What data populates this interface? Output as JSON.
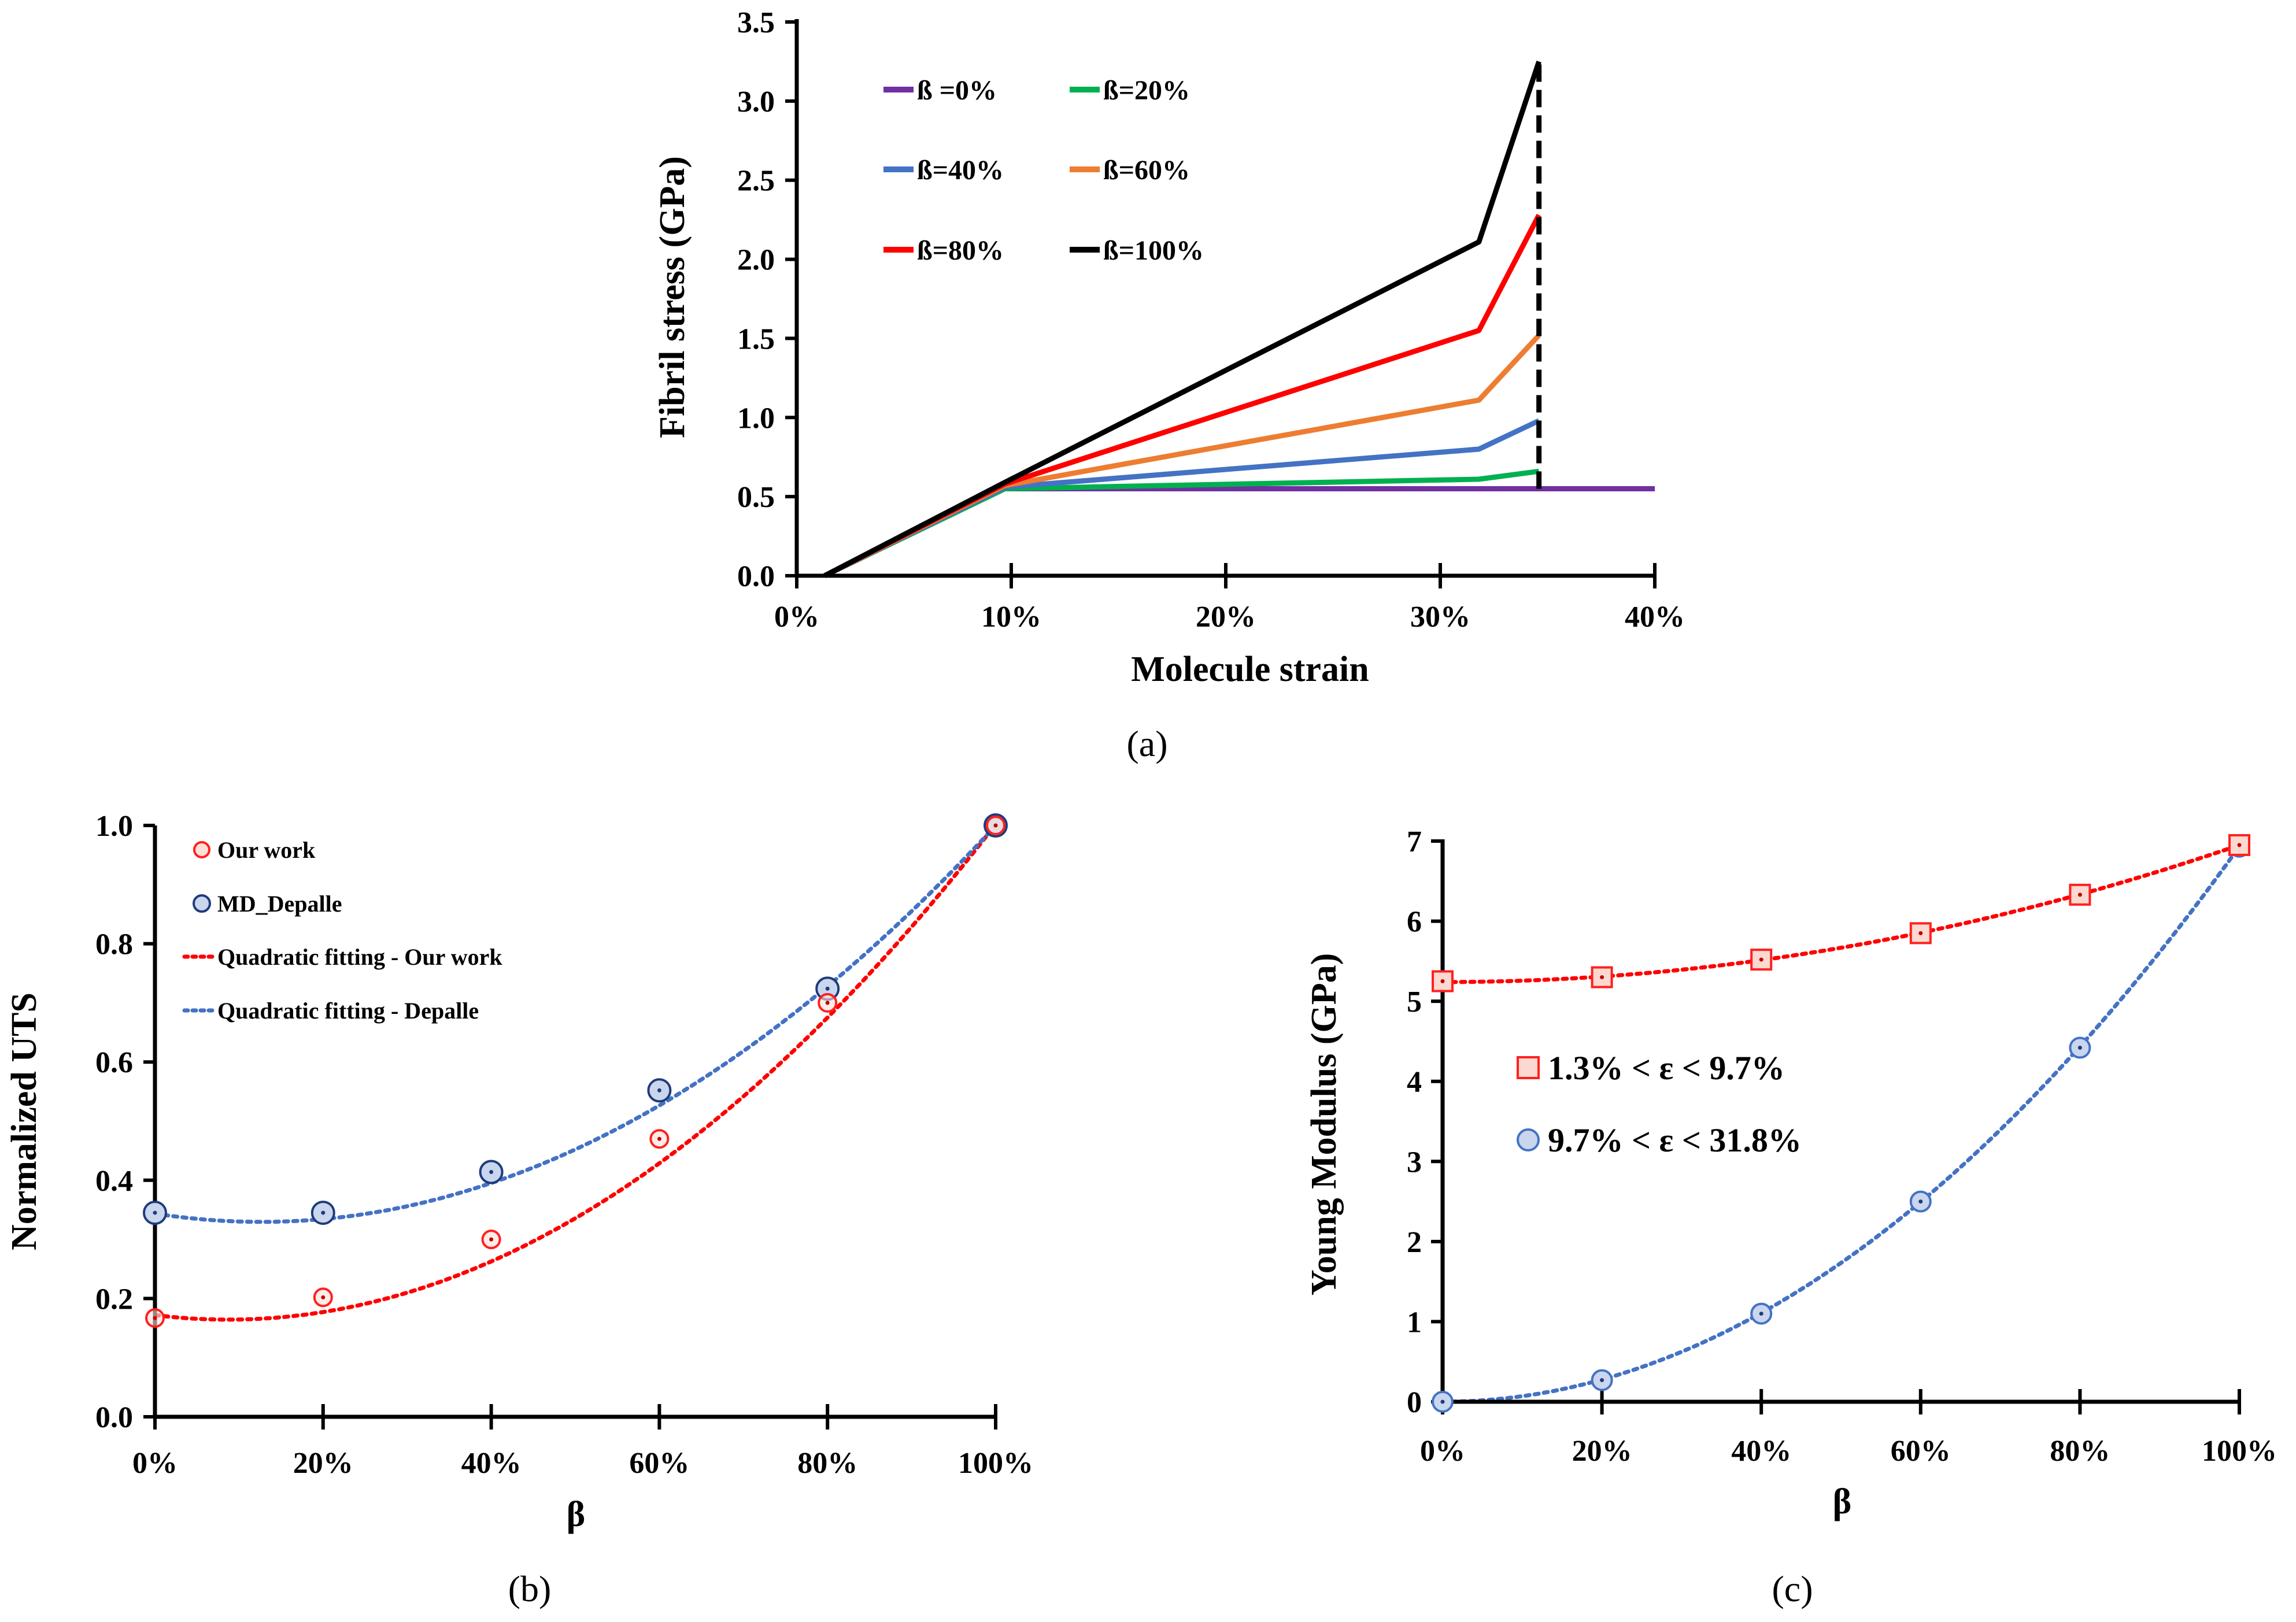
{
  "panels": {
    "a": {
      "caption": "(a)"
    },
    "b": {
      "caption": "(b)"
    },
    "c": {
      "caption": "(c)"
    }
  },
  "chart_data": [
    {
      "id": "a",
      "type": "line",
      "xlabel": "Molecule strain",
      "ylabel": "Fibril stress (GPa)",
      "xlim": [
        0,
        40
      ],
      "ylim": [
        0,
        3.5
      ],
      "x_ticks": [
        "0%",
        "10%",
        "20%",
        "30%",
        "40%"
      ],
      "y_ticks": [
        "0.0",
        "0.5",
        "1.0",
        "1.5",
        "2.0",
        "2.5",
        "3.0",
        "3.5"
      ],
      "legend": "top-left, 2 columns",
      "series": [
        {
          "name": "ß =0%",
          "color": "#7030a0",
          "x": [
            1.3,
            9.7,
            40
          ],
          "y": [
            0,
            0.55,
            0.55
          ]
        },
        {
          "name": "ß=20%",
          "color": "#00b050",
          "x": [
            1.3,
            9.7,
            31.8,
            34.6
          ],
          "y": [
            0,
            0.55,
            0.61,
            0.66
          ]
        },
        {
          "name": "ß=40%",
          "color": "#4472c4",
          "x": [
            1.3,
            9.7,
            31.8,
            34.6
          ],
          "y": [
            0,
            0.56,
            0.8,
            0.98
          ]
        },
        {
          "name": "ß=60%",
          "color": "#ed7d31",
          "x": [
            1.3,
            9.7,
            31.8,
            34.6
          ],
          "y": [
            0,
            0.57,
            1.11,
            1.52
          ]
        },
        {
          "name": "ß=80%",
          "color": "#ff0000",
          "x": [
            1.3,
            9.7,
            31.8,
            34.6
          ],
          "y": [
            0,
            0.58,
            1.55,
            2.28
          ]
        },
        {
          "name": "ß=100%",
          "color": "#000000",
          "x": [
            1.3,
            9.7,
            31.8,
            34.6
          ],
          "y": [
            0,
            0.59,
            2.11,
            3.25
          ]
        }
      ],
      "annotations": [
        {
          "type": "dashed-vertical",
          "x": 34.6,
          "y_from": 0.55,
          "y_to": 3.25,
          "color": "#000000"
        }
      ]
    },
    {
      "id": "b",
      "type": "scatter",
      "xlabel": "β",
      "ylabel": "Normalized UTS",
      "xlim": [
        0,
        100
      ],
      "ylim": [
        0,
        1.0
      ],
      "x_ticks": [
        "0%",
        "20%",
        "40%",
        "60%",
        "80%",
        "100%"
      ],
      "y_ticks": [
        "0.0",
        "0.2",
        "0.4",
        "0.6",
        "0.8",
        "1.0"
      ],
      "legend": "top-left",
      "series": [
        {
          "name": "Our work",
          "color": "#ff2020",
          "x": [
            0,
            20,
            40,
            60,
            80,
            100
          ],
          "y": [
            0.167,
            0.202,
            0.3,
            0.47,
            0.7,
            1.0
          ]
        },
        {
          "name": "MD_Depalle",
          "color": "#1f3b7a",
          "fill": "#c9d6ee",
          "x": [
            0,
            20,
            40,
            60,
            80,
            100
          ],
          "y": [
            0.345,
            0.345,
            0.414,
            0.552,
            0.724,
            1.0
          ]
        }
      ],
      "fits": [
        {
          "name": "Quadratic fitting - Our work",
          "color": "#ff0000",
          "style": "dotted",
          "coeffs": [
            0.1719,
            -0.00175,
            0.0001005
          ]
        },
        {
          "name": "Quadratic fitting - Depalle",
          "color": "#4472c4",
          "style": "dotted",
          "coeffs": [
            0.3436,
            -0.00222,
            8.78e-05
          ]
        }
      ]
    },
    {
      "id": "c",
      "type": "scatter",
      "xlabel": "β",
      "ylabel": "Young Modulus (GPa)",
      "xlim": [
        0,
        100
      ],
      "ylim": [
        0,
        7
      ],
      "x_ticks": [
        "0%",
        "20%",
        "40%",
        "60%",
        "80%",
        "100%"
      ],
      "y_ticks": [
        "0",
        "1",
        "2",
        "3",
        "4",
        "5",
        "6",
        "7"
      ],
      "legend": "middle-left",
      "series": [
        {
          "name": "1.3% < ε < 9.7%",
          "color": "#ff2020",
          "fill": "#fbd8d0",
          "marker": "square",
          "x": [
            0,
            20,
            40,
            60,
            80,
            100
          ],
          "y": [
            5.25,
            5.3,
            5.52,
            5.85,
            6.33,
            6.95
          ]
        },
        {
          "name": "9.7% < ε < 31.8%",
          "color": "#4472c4",
          "fill": "#c9d6ee",
          "marker": "circle",
          "x": [
            0,
            20,
            40,
            60,
            80,
            100
          ],
          "y": [
            0.0,
            0.27,
            1.1,
            2.5,
            4.42,
            6.93
          ]
        }
      ],
      "fits": [
        {
          "color": "#ff0000",
          "style": "dotted",
          "coeffs": [
            5.24,
            0.0,
            0.000171
          ]
        },
        {
          "color": "#4472c4",
          "style": "dotted",
          "coeffs": [
            0.0,
            0.0,
            0.000693
          ]
        }
      ]
    }
  ]
}
